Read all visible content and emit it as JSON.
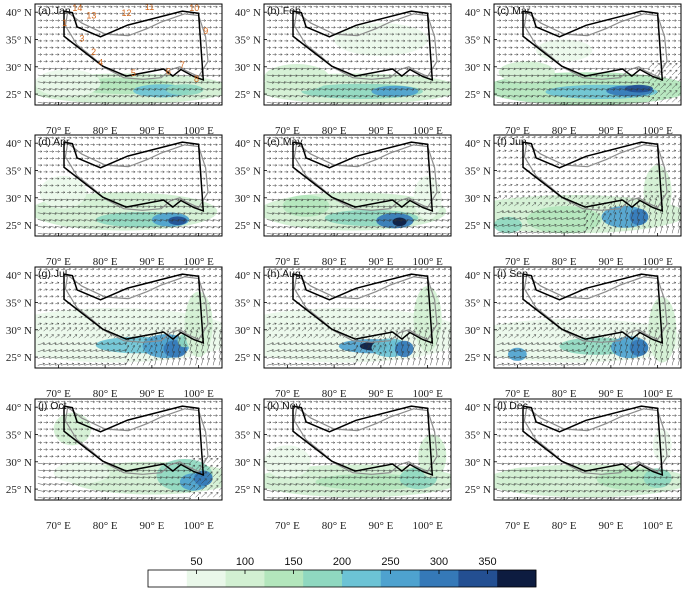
{
  "chart_data": [
    {
      "type": "vector-map",
      "title": "(a) Jan",
      "month_index": 0,
      "box_numbers": [
        "1",
        "2",
        "3",
        "4",
        "5",
        "6",
        "7",
        "8",
        "9",
        "10",
        "11",
        "12",
        "13",
        "14"
      ]
    },
    {
      "type": "vector-map",
      "title": "(b) Feb",
      "month_index": 1
    },
    {
      "type": "vector-map",
      "title": "(c) Mar",
      "month_index": 2
    },
    {
      "type": "vector-map",
      "title": "(d) Apr",
      "month_index": 3
    },
    {
      "type": "vector-map",
      "title": "(e) May",
      "month_index": 4
    },
    {
      "type": "vector-map",
      "title": "(f) Jun",
      "month_index": 5
    },
    {
      "type": "vector-map",
      "title": "(g) Jul",
      "month_index": 6
    },
    {
      "type": "vector-map",
      "title": "(h) Aug",
      "month_index": 7
    },
    {
      "type": "vector-map",
      "title": "(i) Sep",
      "month_index": 8
    },
    {
      "type": "vector-map",
      "title": "(j) Oct",
      "month_index": 9
    },
    {
      "type": "vector-map",
      "title": "(k) Nov",
      "month_index": 10
    },
    {
      "type": "vector-map",
      "title": "(l) Dec",
      "month_index": 11
    }
  ],
  "axes": {
    "x_ticks": [
      "70° E",
      "80° E",
      "90° E",
      "100° E"
    ],
    "x_values": [
      70,
      80,
      90,
      100
    ],
    "y_ticks": [
      "40° N",
      "35° N",
      "30° N",
      "25° N"
    ],
    "y_values": [
      40,
      35,
      30,
      25
    ],
    "xlim": [
      65,
      105
    ],
    "ylim": [
      23,
      41.5
    ]
  },
  "colorbar": {
    "ticks": [
      "50",
      "100",
      "150",
      "200",
      "250",
      "300",
      "350"
    ],
    "tick_values": [
      50,
      100,
      150,
      200,
      250,
      300,
      350
    ],
    "range": [
      0,
      400
    ],
    "colors": [
      "#ffffff",
      "#eaf8ea",
      "#d2f0d2",
      "#b3e6bc",
      "#8fd8c0",
      "#6cc3d5",
      "#4ea2cf",
      "#3579b8",
      "#234f92",
      "#0d1c40"
    ]
  }
}
